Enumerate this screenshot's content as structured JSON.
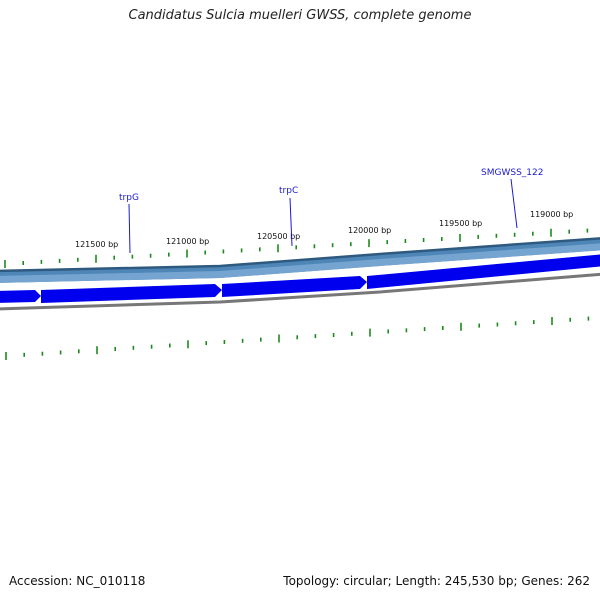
{
  "title": "Candidatus Sulcia muelleri GWSS, complete genome",
  "footer": {
    "accession_text": "Accession: NC_010118",
    "summary_text": "Topology: circular; Length: 245,530 bp; Genes: 262"
  },
  "position_labels": [
    "121500 bp",
    "121000 bp",
    "120500 bp",
    "120000 bp",
    "119500 bp",
    "119000 bp"
  ],
  "gene_labels": [
    "trpG",
    "trpC",
    "SMGWSS_122"
  ],
  "colors": {
    "gene_arrow": "#0000ee",
    "outer_band": "#4f86b8",
    "outer_band_edge": "#2f5a80",
    "backbone": "#777777",
    "tick": "#1e8a1e",
    "gene_label": "#1a1ad0"
  }
}
